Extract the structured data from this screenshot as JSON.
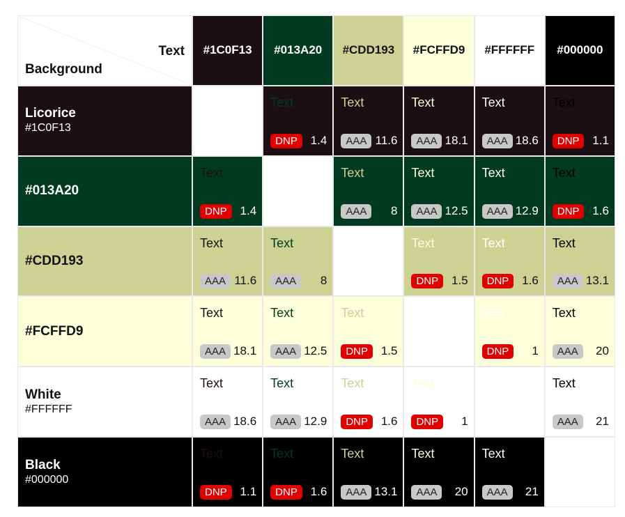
{
  "header": {
    "text_label": "Text",
    "background_label": "Background"
  },
  "colors": [
    {
      "hex": "#1C0F13",
      "name": "Licorice",
      "label": "#1C0F13"
    },
    {
      "hex": "#013A20",
      "name": "#013A20",
      "label": ""
    },
    {
      "hex": "#CDD193",
      "name": "#CDD193",
      "label": ""
    },
    {
      "hex": "#FCFFD9",
      "name": "#FCFFD9",
      "label": ""
    },
    {
      "hex": "#FFFFFF",
      "name": "White",
      "label": "#FFFFFF"
    },
    {
      "hex": "#000000",
      "name": "Black",
      "label": "#000000"
    }
  ],
  "sample_text": "Text",
  "matrix": [
    [
      null,
      {
        "rating": "DNP",
        "ratio": "1.4"
      },
      {
        "rating": "AAA",
        "ratio": "11.6"
      },
      {
        "rating": "AAA",
        "ratio": "18.1"
      },
      {
        "rating": "AAA",
        "ratio": "18.6"
      },
      {
        "rating": "DNP",
        "ratio": "1.1"
      }
    ],
    [
      {
        "rating": "DNP",
        "ratio": "1.4"
      },
      null,
      {
        "rating": "AAA",
        "ratio": "8"
      },
      {
        "rating": "AAA",
        "ratio": "12.5"
      },
      {
        "rating": "AAA",
        "ratio": "12.9"
      },
      {
        "rating": "DNP",
        "ratio": "1.6"
      }
    ],
    [
      {
        "rating": "AAA",
        "ratio": "11.6"
      },
      {
        "rating": "AAA",
        "ratio": "8"
      },
      null,
      {
        "rating": "DNP",
        "ratio": "1.5"
      },
      {
        "rating": "DNP",
        "ratio": "1.6"
      },
      {
        "rating": "AAA",
        "ratio": "13.1"
      }
    ],
    [
      {
        "rating": "AAA",
        "ratio": "18.1"
      },
      {
        "rating": "AAA",
        "ratio": "12.5"
      },
      {
        "rating": "DNP",
        "ratio": "1.5"
      },
      null,
      {
        "rating": "DNP",
        "ratio": "1"
      },
      {
        "rating": "AAA",
        "ratio": "20"
      }
    ],
    [
      {
        "rating": "AAA",
        "ratio": "18.6"
      },
      {
        "rating": "AAA",
        "ratio": "12.9"
      },
      {
        "rating": "DNP",
        "ratio": "1.6"
      },
      {
        "rating": "DNP",
        "ratio": "1"
      },
      null,
      {
        "rating": "AAA",
        "ratio": "21"
      }
    ],
    [
      {
        "rating": "DNP",
        "ratio": "1.1"
      },
      {
        "rating": "DNP",
        "ratio": "1.6"
      },
      {
        "rating": "AAA",
        "ratio": "13.1"
      },
      {
        "rating": "AAA",
        "ratio": "20"
      },
      {
        "rating": "AAA",
        "ratio": "21"
      },
      null
    ]
  ]
}
